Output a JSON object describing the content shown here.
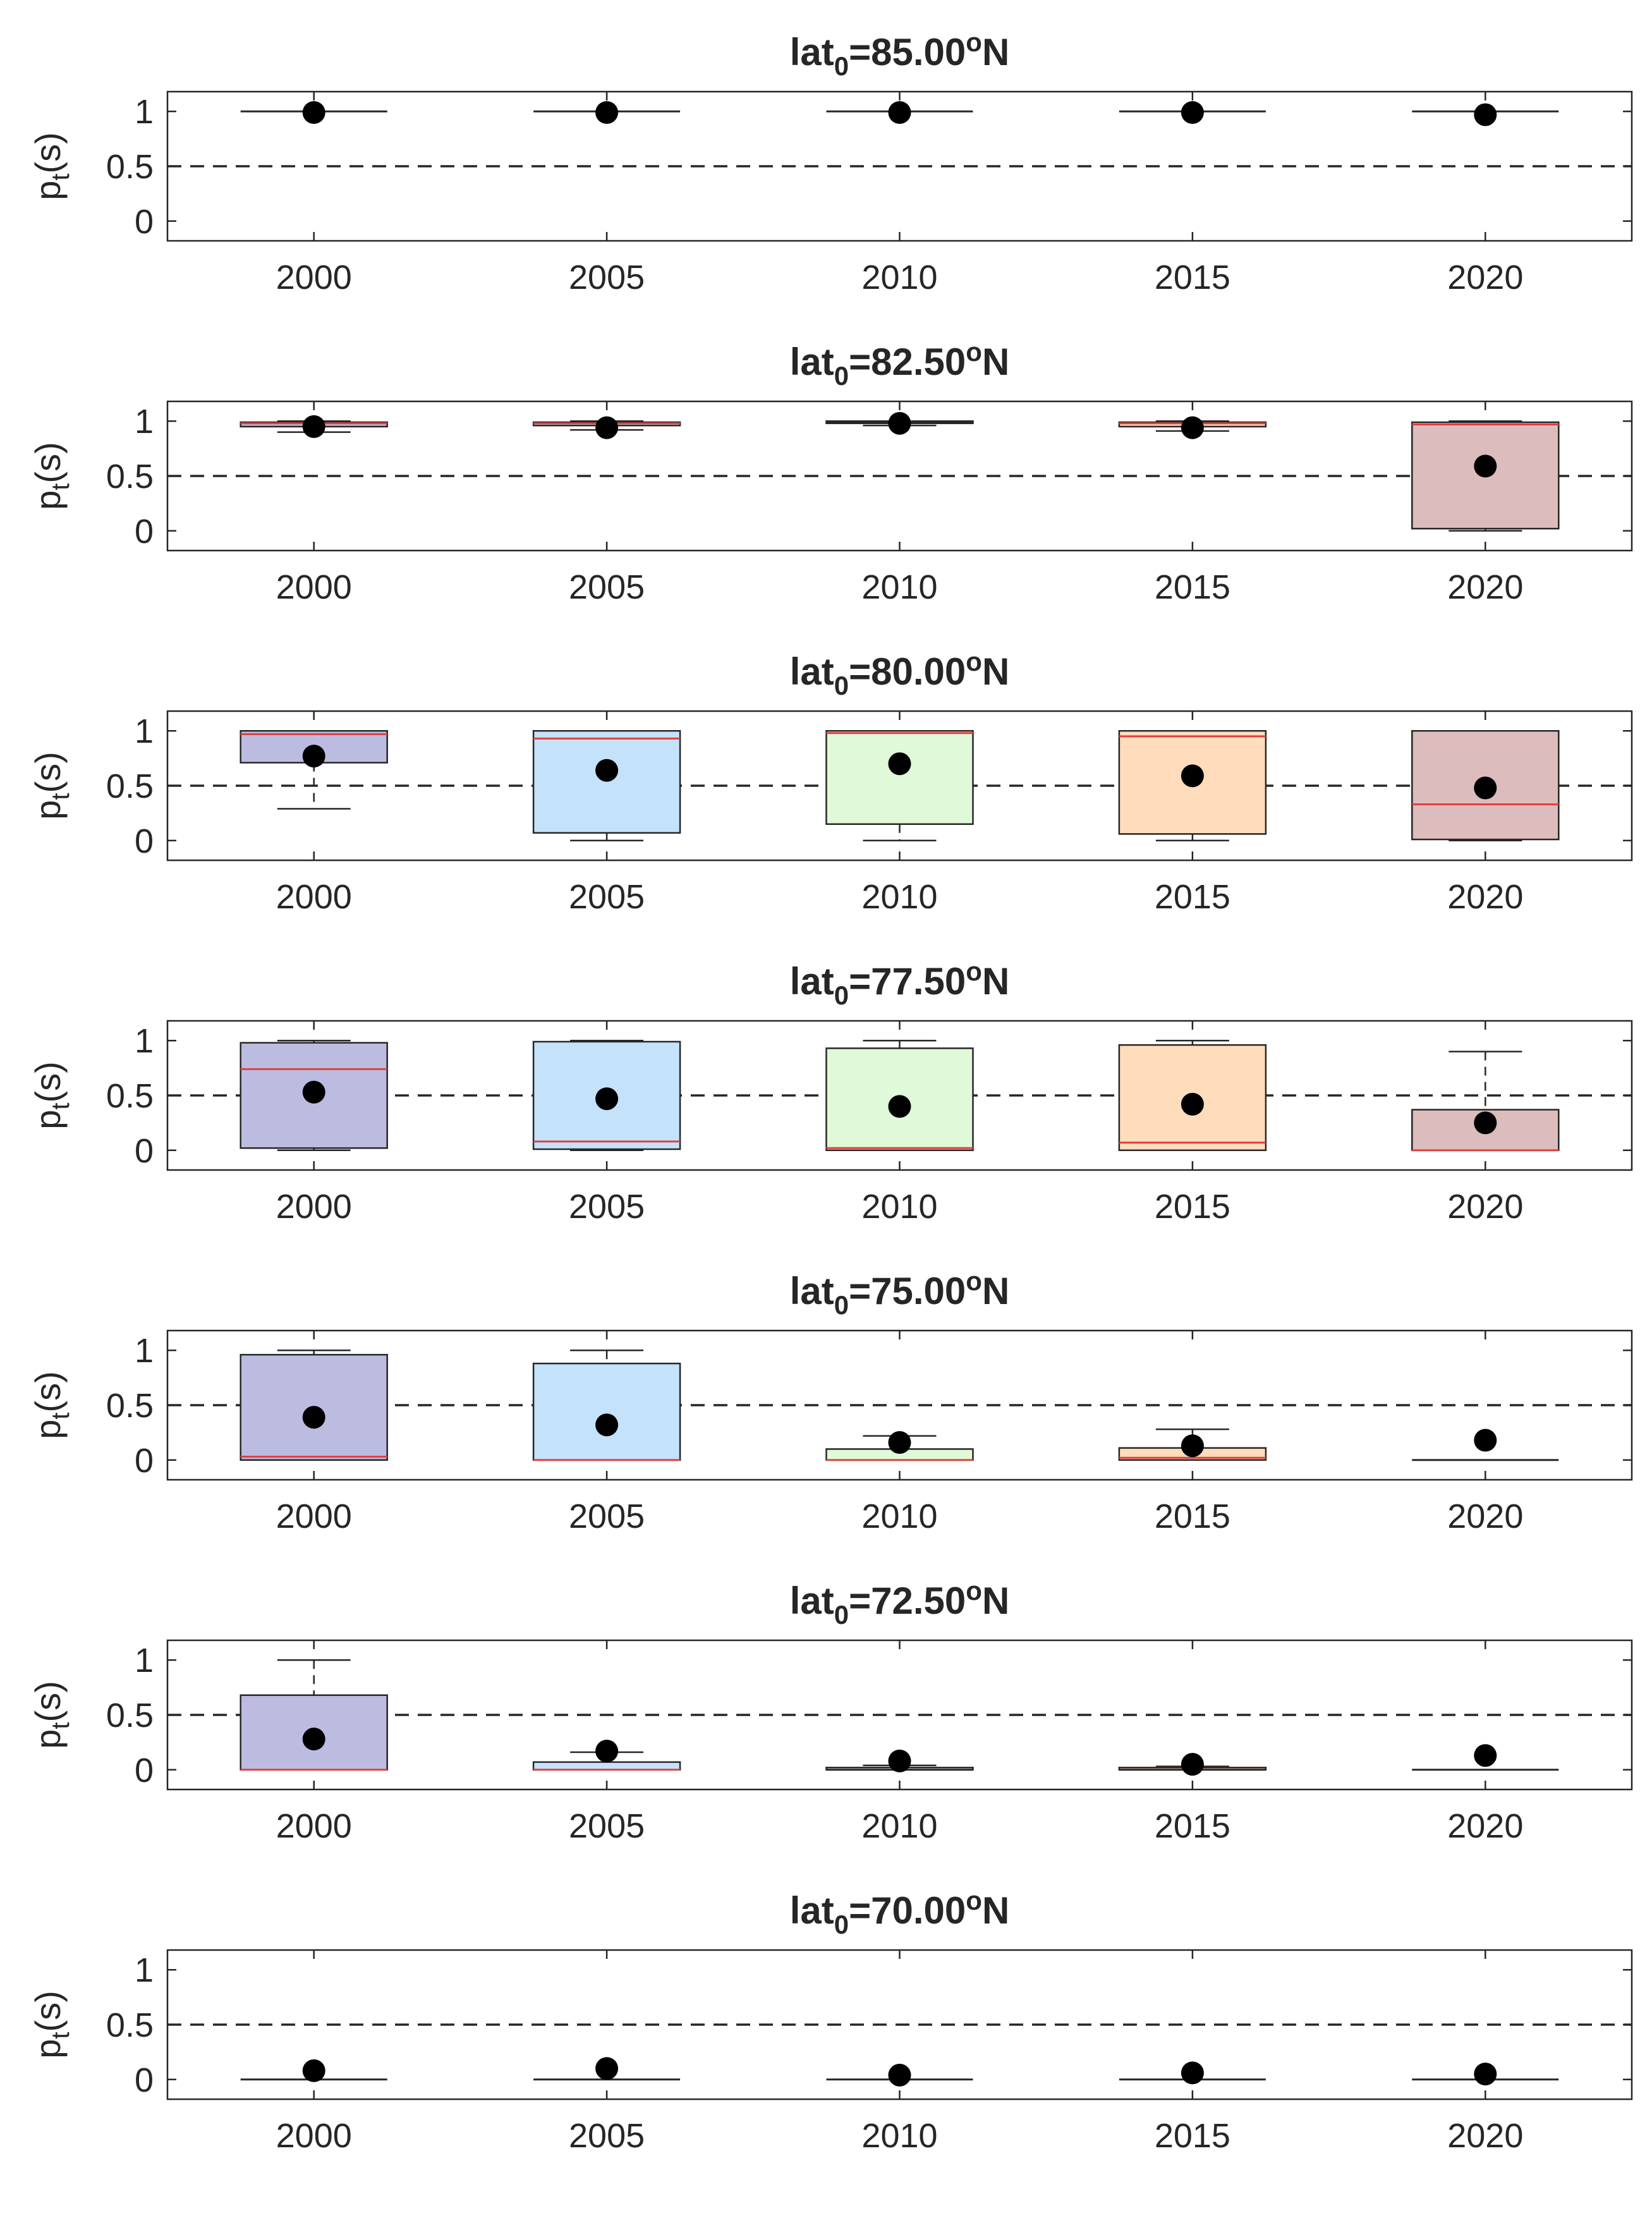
{
  "chart_data": [
    {
      "type": "box",
      "title": {
        "prefix": "lat",
        "sub": "0",
        "value": "=85.00",
        "sup": "o",
        "suffix": "N"
      },
      "ylabel": {
        "main": "p",
        "sub": "t",
        "rest": "(s)"
      },
      "x": [
        "2000",
        "2005",
        "2010",
        "2015",
        "2020"
      ],
      "yticks": [
        "0",
        "0.5",
        "1"
      ],
      "ylim": [
        -0.18,
        1.18
      ],
      "reference_line": 0.5,
      "boxes": [
        {
          "q1": 1.0,
          "q3": 1.0,
          "median": 1.0,
          "whisker_low": 1.0,
          "whisker_high": 1.0,
          "mean": 0.99
        },
        {
          "q1": 1.0,
          "q3": 1.0,
          "median": 1.0,
          "whisker_low": 1.0,
          "whisker_high": 1.0,
          "mean": 0.99
        },
        {
          "q1": 1.0,
          "q3": 1.0,
          "median": 1.0,
          "whisker_low": 1.0,
          "whisker_high": 1.0,
          "mean": 0.99
        },
        {
          "q1": 1.0,
          "q3": 1.0,
          "median": 1.0,
          "whisker_low": 1.0,
          "whisker_high": 1.0,
          "mean": 0.99
        },
        {
          "q1": 1.0,
          "q3": 1.0,
          "median": 1.0,
          "whisker_low": 1.0,
          "whisker_high": 1.0,
          "mean": 0.97
        }
      ]
    },
    {
      "type": "box",
      "title": {
        "prefix": "lat",
        "sub": "0",
        "value": "=82.50",
        "sup": "o",
        "suffix": "N"
      },
      "ylabel": {
        "main": "p",
        "sub": "t",
        "rest": "(s)"
      },
      "x": [
        "2000",
        "2005",
        "2010",
        "2015",
        "2020"
      ],
      "yticks": [
        "0",
        "0.5",
        "1"
      ],
      "ylim": [
        -0.18,
        1.18
      ],
      "reference_line": 0.5,
      "boxes": [
        {
          "q1": 0.95,
          "q3": 0.99,
          "median": 0.98,
          "whisker_low": 0.9,
          "whisker_high": 1.0,
          "mean": 0.95
        },
        {
          "q1": 0.96,
          "q3": 0.99,
          "median": 0.98,
          "whisker_low": 0.92,
          "whisker_high": 1.0,
          "mean": 0.94
        },
        {
          "q1": 0.98,
          "q3": 1.0,
          "median": 0.99,
          "whisker_low": 0.96,
          "whisker_high": 1.0,
          "mean": 0.98
        },
        {
          "q1": 0.95,
          "q3": 0.99,
          "median": 0.98,
          "whisker_low": 0.91,
          "whisker_high": 1.0,
          "mean": 0.94
        },
        {
          "q1": 0.02,
          "q3": 0.99,
          "median": 0.97,
          "whisker_low": 0.0,
          "whisker_high": 1.0,
          "mean": 0.59
        }
      ]
    },
    {
      "type": "box",
      "title": {
        "prefix": "lat",
        "sub": "0",
        "value": "=80.00",
        "sup": "o",
        "suffix": "N"
      },
      "ylabel": {
        "main": "p",
        "sub": "t",
        "rest": "(s)"
      },
      "x": [
        "2000",
        "2005",
        "2010",
        "2015",
        "2020"
      ],
      "yticks": [
        "0",
        "0.5",
        "1"
      ],
      "ylim": [
        -0.18,
        1.18
      ],
      "reference_line": 0.5,
      "boxes": [
        {
          "q1": 0.71,
          "q3": 1.0,
          "median": 0.97,
          "whisker_low": 0.29,
          "whisker_high": 1.0,
          "mean": 0.77
        },
        {
          "q1": 0.07,
          "q3": 1.0,
          "median": 0.93,
          "whisker_low": 0.0,
          "whisker_high": 1.0,
          "mean": 0.64
        },
        {
          "q1": 0.15,
          "q3": 1.0,
          "median": 0.98,
          "whisker_low": 0.0,
          "whisker_high": 1.0,
          "mean": 0.7
        },
        {
          "q1": 0.06,
          "q3": 1.0,
          "median": 0.95,
          "whisker_low": 0.0,
          "whisker_high": 1.0,
          "mean": 0.59
        },
        {
          "q1": 0.01,
          "q3": 1.0,
          "median": 0.33,
          "whisker_low": 0.0,
          "whisker_high": 1.0,
          "mean": 0.48
        }
      ]
    },
    {
      "type": "box",
      "title": {
        "prefix": "lat",
        "sub": "0",
        "value": "=77.50",
        "sup": "o",
        "suffix": "N"
      },
      "ylabel": {
        "main": "p",
        "sub": "t",
        "rest": "(s)"
      },
      "x": [
        "2000",
        "2005",
        "2010",
        "2015",
        "2020"
      ],
      "yticks": [
        "0",
        "0.5",
        "1"
      ],
      "ylim": [
        -0.18,
        1.18
      ],
      "reference_line": 0.5,
      "boxes": [
        {
          "q1": 0.02,
          "q3": 0.98,
          "median": 0.74,
          "whisker_low": 0.0,
          "whisker_high": 1.0,
          "mean": 0.53
        },
        {
          "q1": 0.01,
          "q3": 0.99,
          "median": 0.08,
          "whisker_low": 0.0,
          "whisker_high": 1.0,
          "mean": 0.47
        },
        {
          "q1": 0.0,
          "q3": 0.93,
          "median": 0.02,
          "whisker_low": 0.0,
          "whisker_high": 1.0,
          "mean": 0.4
        },
        {
          "q1": 0.0,
          "q3": 0.96,
          "median": 0.07,
          "whisker_low": 0.0,
          "whisker_high": 1.0,
          "mean": 0.42
        },
        {
          "q1": 0.0,
          "q3": 0.37,
          "median": 0.0,
          "whisker_low": 0.0,
          "whisker_high": 0.9,
          "mean": 0.25
        }
      ]
    },
    {
      "type": "box",
      "title": {
        "prefix": "lat",
        "sub": "0",
        "value": "=75.00",
        "sup": "o",
        "suffix": "N"
      },
      "ylabel": {
        "main": "p",
        "sub": "t",
        "rest": "(s)"
      },
      "x": [
        "2000",
        "2005",
        "2010",
        "2015",
        "2020"
      ],
      "yticks": [
        "0",
        "0.5",
        "1"
      ],
      "ylim": [
        -0.18,
        1.18
      ],
      "reference_line": 0.5,
      "boxes": [
        {
          "q1": 0.0,
          "q3": 0.96,
          "median": 0.03,
          "whisker_low": 0.0,
          "whisker_high": 1.0,
          "mean": 0.39
        },
        {
          "q1": 0.0,
          "q3": 0.88,
          "median": 0.0,
          "whisker_low": 0.0,
          "whisker_high": 1.0,
          "mean": 0.32
        },
        {
          "q1": 0.0,
          "q3": 0.1,
          "median": 0.0,
          "whisker_low": 0.0,
          "whisker_high": 0.22,
          "mean": 0.16
        },
        {
          "q1": 0.0,
          "q3": 0.11,
          "median": 0.02,
          "whisker_low": 0.0,
          "whisker_high": 0.28,
          "mean": 0.13
        },
        {
          "q1": 0.0,
          "q3": 0.0,
          "median": 0.0,
          "whisker_low": 0.0,
          "whisker_high": 0.0,
          "mean": 0.18
        }
      ]
    },
    {
      "type": "box",
      "title": {
        "prefix": "lat",
        "sub": "0",
        "value": "=72.50",
        "sup": "o",
        "suffix": "N"
      },
      "ylabel": {
        "main": "p",
        "sub": "t",
        "rest": "(s)"
      },
      "x": [
        "2000",
        "2005",
        "2010",
        "2015",
        "2020"
      ],
      "yticks": [
        "0",
        "0.5",
        "1"
      ],
      "ylim": [
        -0.18,
        1.18
      ],
      "reference_line": 0.5,
      "boxes": [
        {
          "q1": 0.0,
          "q3": 0.68,
          "median": 0.0,
          "whisker_low": 0.0,
          "whisker_high": 1.0,
          "mean": 0.28
        },
        {
          "q1": 0.0,
          "q3": 0.07,
          "median": 0.0,
          "whisker_low": 0.0,
          "whisker_high": 0.16,
          "mean": 0.17
        },
        {
          "q1": 0.0,
          "q3": 0.02,
          "median": 0.0,
          "whisker_low": 0.0,
          "whisker_high": 0.04,
          "mean": 0.08
        },
        {
          "q1": 0.0,
          "q3": 0.02,
          "median": 0.0,
          "whisker_low": 0.0,
          "whisker_high": 0.03,
          "mean": 0.05
        },
        {
          "q1": 0.0,
          "q3": 0.0,
          "median": 0.0,
          "whisker_low": 0.0,
          "whisker_high": 0.0,
          "mean": 0.13
        }
      ]
    },
    {
      "type": "box",
      "title": {
        "prefix": "lat",
        "sub": "0",
        "value": "=70.00",
        "sup": "o",
        "suffix": "N"
      },
      "ylabel": {
        "main": "p",
        "sub": "t",
        "rest": "(s)"
      },
      "x": [
        "2000",
        "2005",
        "2010",
        "2015",
        "2020"
      ],
      "yticks": [
        "0",
        "0.5",
        "1"
      ],
      "ylim": [
        -0.18,
        1.18
      ],
      "reference_line": 0.5,
      "boxes": [
        {
          "q1": 0.0,
          "q3": 0.0,
          "median": 0.0,
          "whisker_low": 0.0,
          "whisker_high": 0.0,
          "mean": 0.08
        },
        {
          "q1": 0.0,
          "q3": 0.0,
          "median": 0.0,
          "whisker_low": 0.0,
          "whisker_high": 0.0,
          "mean": 0.1
        },
        {
          "q1": 0.0,
          "q3": 0.0,
          "median": 0.0,
          "whisker_low": 0.0,
          "whisker_high": 0.0,
          "mean": 0.04
        },
        {
          "q1": 0.0,
          "q3": 0.0,
          "median": 0.0,
          "whisker_low": 0.0,
          "whisker_high": 0.0,
          "mean": 0.06
        },
        {
          "q1": 0.0,
          "q3": 0.0,
          "median": 0.0,
          "whisker_low": 0.0,
          "whisker_high": 0.0,
          "mean": 0.05
        }
      ]
    }
  ],
  "colors": {
    "box_fills": [
      "#bcbce0",
      "#c4e2fa",
      "#dff9d9",
      "#ffdcbc",
      "#dcbcbc"
    ],
    "median_line": "#e04040",
    "frame": "#262626",
    "reference_line": "#262626",
    "mean_marker": "#000000"
  }
}
